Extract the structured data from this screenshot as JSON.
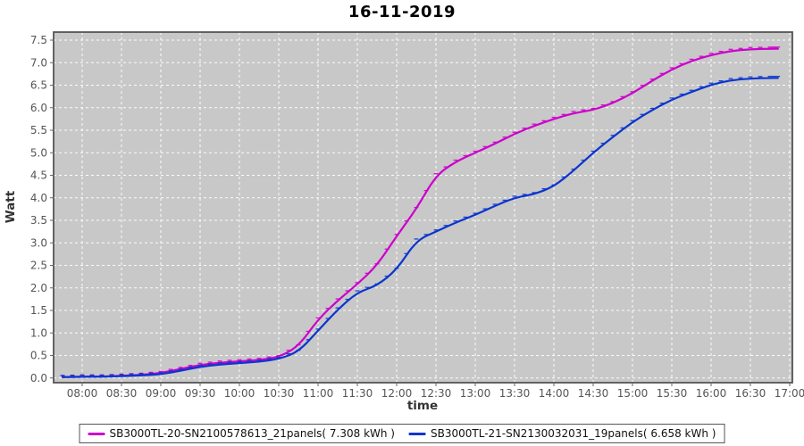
{
  "page": {
    "title": "16-11-2019"
  },
  "chart_data": {
    "type": "line",
    "title": "16-11-2019",
    "xlabel": "time",
    "ylabel": "Watt",
    "ylim": [
      0,
      7.5
    ],
    "xlim_hours": [
      7.64,
      17.03
    ],
    "grid": "white dashed on gray",
    "plot_bg": "#c8c8c8",
    "grid_color": "#ffffff",
    "border_color": "#545454",
    "tick_label_color": "#555555",
    "axis_label_color": "#333333",
    "legend_position": "bottom",
    "x_ticks": [
      "08:00",
      "08:30",
      "09:00",
      "09:30",
      "10:00",
      "10:30",
      "11:00",
      "11:30",
      "12:00",
      "12:30",
      "13:00",
      "13:30",
      "14:00",
      "14:30",
      "15:00",
      "15:30",
      "16:00",
      "16:30",
      "17:00"
    ],
    "y_ticks": [
      "0.0",
      "0.5",
      "1.0",
      "1.5",
      "2.0",
      "2.5",
      "3.0",
      "3.5",
      "4.0",
      "4.5",
      "5.0",
      "5.5",
      "6.0",
      "6.5",
      "7.0",
      "7.5"
    ],
    "x_hours": [
      7.75,
      8.0,
      8.25,
      8.5,
      8.75,
      9.0,
      9.25,
      9.5,
      9.75,
      10.0,
      10.25,
      10.5,
      10.75,
      11.0,
      11.25,
      11.5,
      11.75,
      12.0,
      12.25,
      12.5,
      12.75,
      13.0,
      13.25,
      13.5,
      13.75,
      14.0,
      14.25,
      14.5,
      14.75,
      15.0,
      15.25,
      15.5,
      15.75,
      16.0,
      16.25,
      16.5,
      16.75,
      16.85
    ],
    "series": [
      {
        "name": "SB3000TL-20-SN2100578613_21panels( 7.308 kWh )",
        "total_kwh": 7.308,
        "color": "#cc00cc",
        "values": [
          0.02,
          0.03,
          0.03,
          0.05,
          0.07,
          0.11,
          0.2,
          0.29,
          0.34,
          0.37,
          0.4,
          0.46,
          0.7,
          1.3,
          1.72,
          2.08,
          2.5,
          3.15,
          3.75,
          4.5,
          4.8,
          5.0,
          5.2,
          5.42,
          5.6,
          5.75,
          5.88,
          5.95,
          6.1,
          6.32,
          6.6,
          6.85,
          7.04,
          7.17,
          7.26,
          7.3,
          7.31,
          7.31
        ]
      },
      {
        "name": "SB3000TL-21-SN2130032031_19panels( 6.658 kWh )",
        "total_kwh": 6.658,
        "color": "#0b35cf",
        "values": [
          0.02,
          0.03,
          0.03,
          0.04,
          0.06,
          0.08,
          0.16,
          0.25,
          0.3,
          0.33,
          0.36,
          0.42,
          0.58,
          1.05,
          1.52,
          1.9,
          2.05,
          2.4,
          3.05,
          3.25,
          3.45,
          3.62,
          3.82,
          4.0,
          4.08,
          4.25,
          4.6,
          5.0,
          5.35,
          5.68,
          5.95,
          6.18,
          6.35,
          6.51,
          6.61,
          6.65,
          6.66,
          6.66
        ]
      }
    ]
  }
}
